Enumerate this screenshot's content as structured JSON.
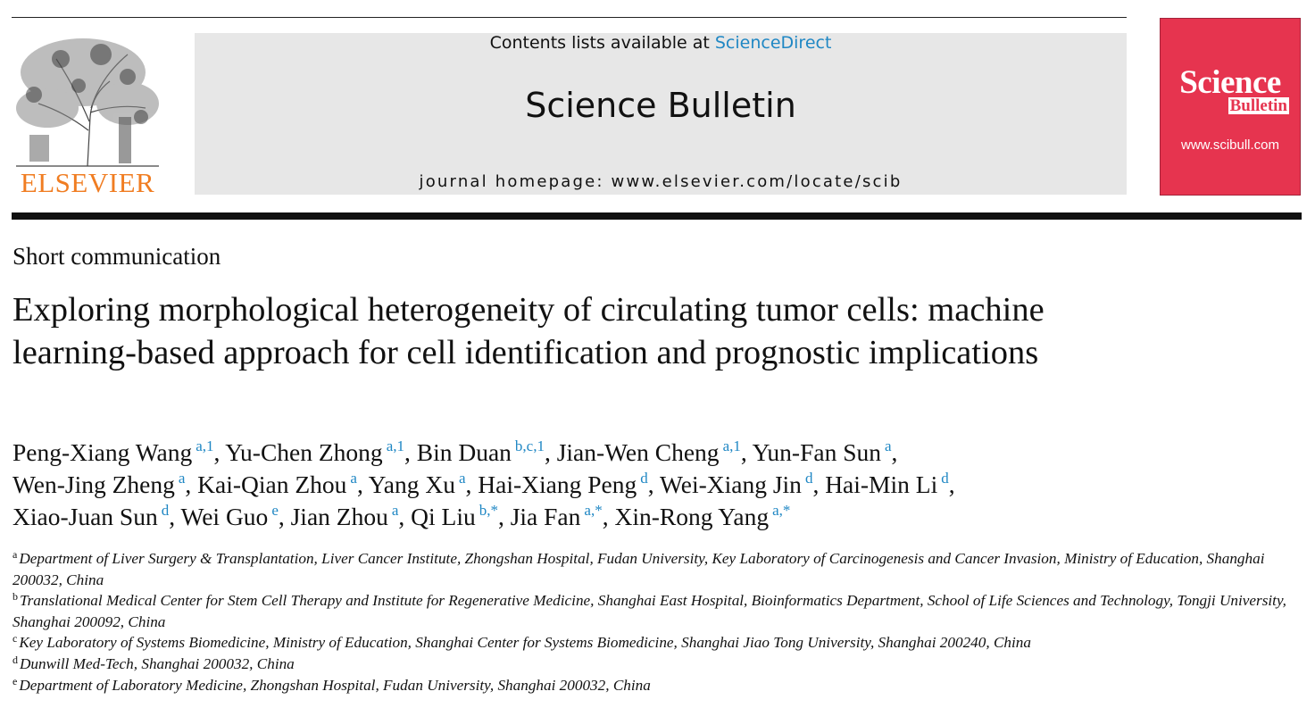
{
  "header": {
    "contents_prefix": "Contents lists available at",
    "contents_link": "ScienceDirect",
    "journal": "Science Bulletin",
    "homepage": "journal homepage: www.elsevier.com/locate/scib",
    "publisher": "ELSEVIER",
    "cover_title": "Science",
    "cover_subtitle": "Bulletin",
    "cover_url": "www.scibull.com"
  },
  "article_type": "Short communication",
  "title": "Exploring morphological heterogeneity of circulating tumor cells: machine learning-based approach for cell identification and prognostic implications",
  "authors_separator": ",",
  "authors": [
    [
      {
        "name": "Peng-Xiang Wang",
        "affil": "a,1"
      },
      {
        "name": "Yu-Chen Zhong",
        "affil": "a,1"
      },
      {
        "name": "Bin Duan",
        "affil": "b,c,1"
      },
      {
        "name": "Jian-Wen Cheng",
        "affil": "a,1"
      },
      {
        "name": "Yun-Fan Sun",
        "affil": "a"
      }
    ],
    [
      {
        "name": "Wen-Jing Zheng",
        "affil": "a"
      },
      {
        "name": "Kai-Qian Zhou",
        "affil": "a"
      },
      {
        "name": "Yang Xu",
        "affil": "a"
      },
      {
        "name": "Hai-Xiang Peng",
        "affil": "d"
      },
      {
        "name": "Wei-Xiang Jin",
        "affil": "d"
      },
      {
        "name": "Hai-Min Li",
        "affil": "d"
      }
    ],
    [
      {
        "name": "Xiao-Juan Sun",
        "affil": "d"
      },
      {
        "name": "Wei Guo",
        "affil": "e"
      },
      {
        "name": "Jian Zhou",
        "affil": "a"
      },
      {
        "name": "Qi Liu",
        "affil": "b,*"
      },
      {
        "name": "Jia Fan",
        "affil": "a,*"
      },
      {
        "name": "Xin-Rong Yang",
        "affil": "a,*"
      }
    ]
  ],
  "affiliations": [
    {
      "mark": "a",
      "text": "Department of Liver Surgery & Transplantation, Liver Cancer Institute, Zhongshan Hospital, Fudan University, Key Laboratory of Carcinogenesis and Cancer Invasion, Ministry of Education, Shanghai 200032, China"
    },
    {
      "mark": "b",
      "text": "Translational Medical Center for Stem Cell Therapy and Institute for Regenerative Medicine, Shanghai East Hospital, Bioinformatics Department, School of Life Sciences and Technology, Tongji University, Shanghai 200092, China"
    },
    {
      "mark": "c",
      "text": "Key Laboratory of Systems Biomedicine, Ministry of Education, Shanghai Center for Systems Biomedicine, Shanghai Jiao Tong University, Shanghai 200240, China"
    },
    {
      "mark": "d",
      "text": "Dunwill Med-Tech, Shanghai 200032, China"
    },
    {
      "mark": "e",
      "text": "Department of Laboratory Medicine, Zhongshan Hospital, Fudan University, Shanghai 200032, China"
    }
  ]
}
